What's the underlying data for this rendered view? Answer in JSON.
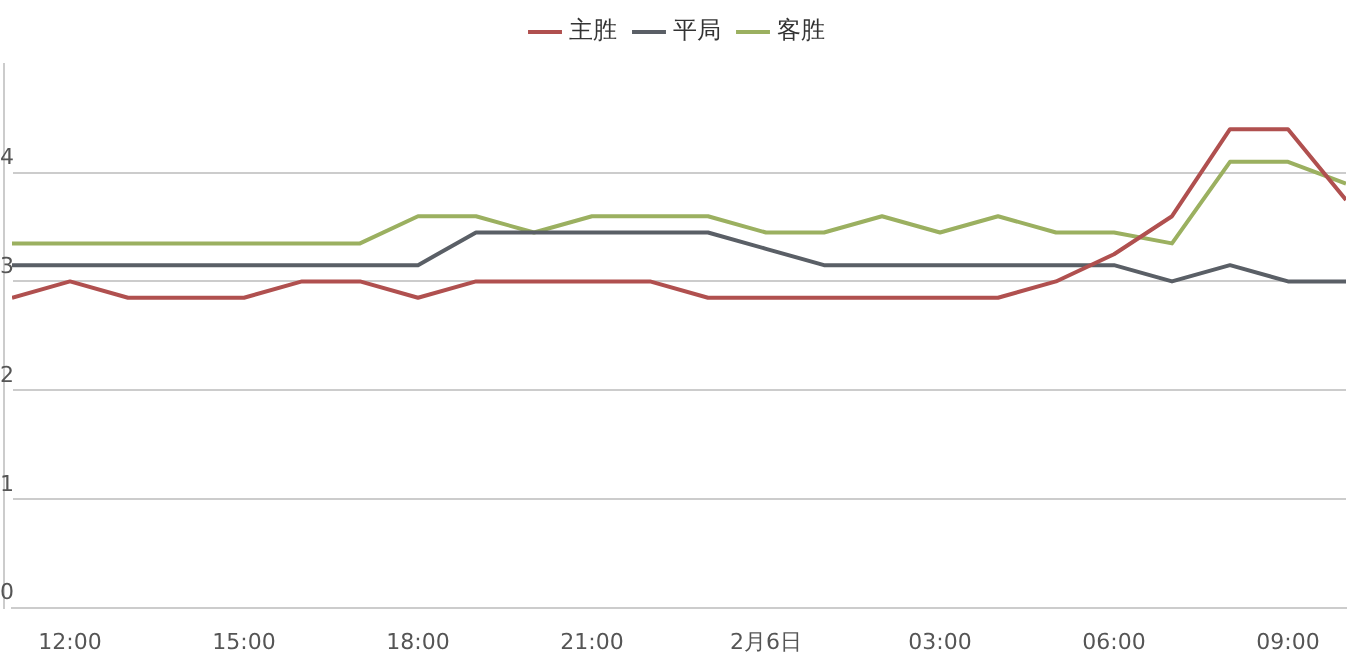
{
  "chart_data": {
    "type": "line",
    "x": [
      "--02-05T11:00",
      "--02-05T12:00",
      "--02-05T13:00",
      "--02-05T14:00",
      "--02-05T15:00",
      "--02-05T16:00",
      "--02-05T17:00",
      "--02-05T18:00",
      "--02-05T19:00",
      "--02-05T20:00",
      "--02-05T21:00",
      "--02-05T22:00",
      "--02-05T23:00",
      "--02-06T00:00",
      "--02-06T01:00",
      "--02-06T02:00",
      "--02-06T03:00",
      "--02-06T04:00",
      "--02-06T05:00",
      "--02-06T06:00",
      "--02-06T07:00",
      "--02-06T08:00",
      "--02-06T09:00",
      "--02-06T10:00"
    ],
    "series": [
      {
        "name": "主胜",
        "color": "#b0504f",
        "values": [
          2.85,
          3.0,
          2.85,
          2.85,
          2.85,
          3.0,
          3.0,
          2.85,
          3.0,
          3.0,
          3.0,
          3.0,
          2.85,
          2.85,
          2.85,
          2.85,
          2.85,
          2.85,
          3.0,
          3.25,
          3.6,
          4.4,
          4.4,
          3.75
        ]
      },
      {
        "name": "平局",
        "color": "#5a5f66",
        "values": [
          3.15,
          3.15,
          3.15,
          3.15,
          3.15,
          3.15,
          3.15,
          3.15,
          3.45,
          3.45,
          3.45,
          3.45,
          3.45,
          3.3,
          3.15,
          3.15,
          3.15,
          3.15,
          3.15,
          3.15,
          3.0,
          3.15,
          3.0,
          3.0
        ]
      },
      {
        "name": "客胜",
        "color": "#9bb060",
        "values": [
          3.35,
          3.35,
          3.35,
          3.35,
          3.35,
          3.35,
          3.35,
          3.6,
          3.6,
          3.45,
          3.6,
          3.6,
          3.6,
          3.45,
          3.45,
          3.6,
          3.45,
          3.6,
          3.45,
          3.45,
          3.35,
          4.1,
          4.1,
          3.9
        ]
      }
    ],
    "xlim": [
      "--02-05T11:00",
      "--02-06T10:00"
    ],
    "xticks": [
      {
        "value": "--02-05T12:00",
        "label": "12:00"
      },
      {
        "value": "--02-05T15:00",
        "label": "15:00"
      },
      {
        "value": "--02-05T18:00",
        "label": "18:00"
      },
      {
        "value": "--02-05T21:00",
        "label": "21:00"
      },
      {
        "value": "--02-06T00:00",
        "label": "2月6日"
      },
      {
        "value": "--02-06T03:00",
        "label": "03:00"
      },
      {
        "value": "--02-06T06:00",
        "label": "06:00"
      },
      {
        "value": "--02-06T09:00",
        "label": "09:00"
      }
    ],
    "ylim": [
      0,
      5
    ],
    "yticks": [
      0,
      1,
      2,
      3,
      4
    ],
    "grid": "y",
    "legend": "top",
    "marker": "none",
    "line_style": "solid"
  }
}
